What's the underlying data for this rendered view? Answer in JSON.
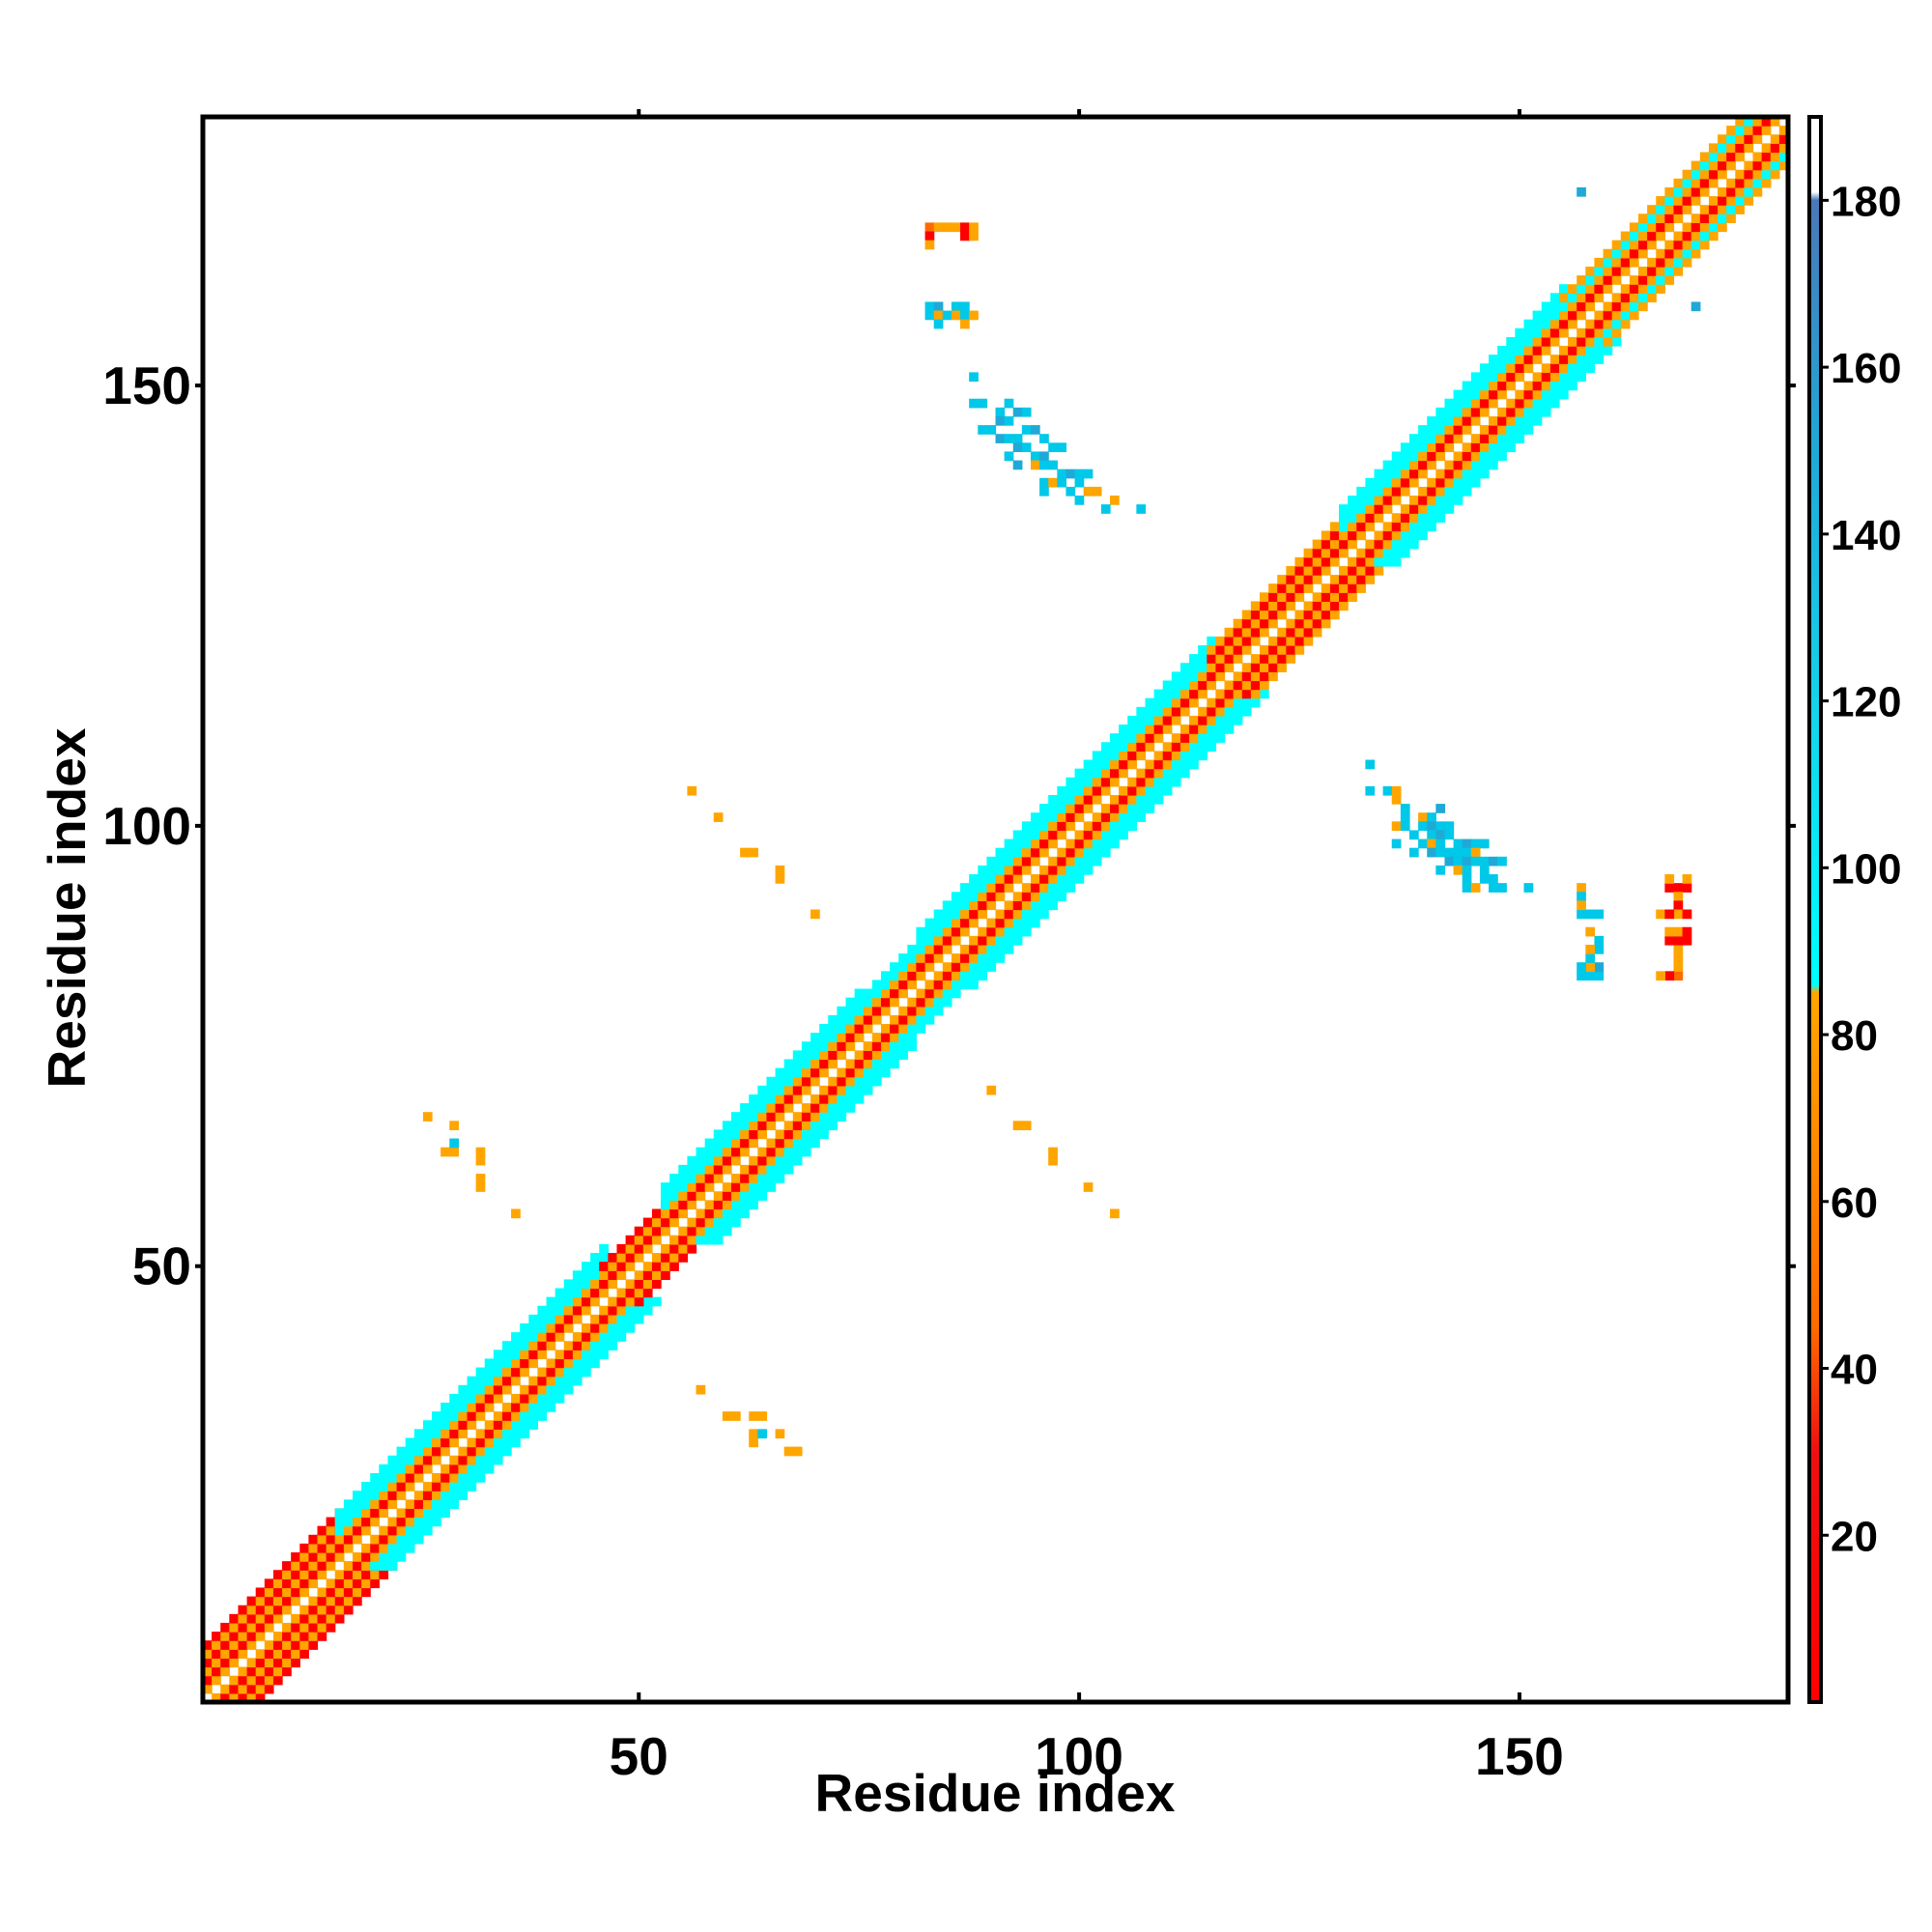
{
  "chart_data": {
    "type": "heatmap",
    "title": "",
    "xlabel": "Residue index",
    "ylabel": "Residue index",
    "xlim": [
      0.5,
      180.5
    ],
    "ylim": [
      0.5,
      180.5
    ],
    "x_ticks": [
      "50",
      "100",
      "150"
    ],
    "y_ticks": [
      "50",
      "100",
      "150"
    ],
    "colorbar": {
      "range": [
        0,
        190
      ],
      "ticks": [
        "20",
        "40",
        "60",
        "80",
        "100",
        "120",
        "140",
        "160",
        "180"
      ],
      "color_stops": [
        {
          "value": 0,
          "color": "#ff0000"
        },
        {
          "value": 30,
          "color": "#ee1010"
        },
        {
          "value": 45,
          "color": "#ff6a00"
        },
        {
          "value": 85,
          "color": "#ffa500"
        },
        {
          "value": 86,
          "color": "#00ffff"
        },
        {
          "value": 120,
          "color": "#16d2ea"
        },
        {
          "value": 150,
          "color": "#20a9d6"
        },
        {
          "value": 180,
          "color": "#4a78b8"
        },
        {
          "value": 181,
          "color": "#ffffff"
        },
        {
          "value": 190,
          "color": "#ffffff"
        }
      ]
    },
    "color_scale_note": "",
    "segments": [
      {
        "start": 1,
        "end": 16,
        "band": [
          1,
          2,
          3,
          4,
          5,
          6
        ],
        "colors": [
          "#ffa500",
          "#ff0000",
          "#ffa500",
          "#ff0000",
          "#ffa500",
          "#ff0000"
        ]
      },
      {
        "start": 16,
        "end": 46,
        "band": [
          1,
          2,
          3,
          4,
          5,
          6
        ],
        "colors": [
          "#ffa500",
          "#ff0000",
          "#ffa500",
          "#00ffff",
          "#00ffff",
          "#00ffff"
        ]
      },
      {
        "start": 46,
        "end": 53,
        "band": [
          1,
          2,
          3,
          4
        ],
        "colors": [
          "#ffa500",
          "#ff0000",
          "#ffa500",
          "#ff0000"
        ]
      },
      {
        "start": 53,
        "end": 75,
        "band": [
          1,
          2,
          3,
          4,
          5,
          6
        ],
        "colors": [
          "#ffa500",
          "#ff0000",
          "#ffa500",
          "#00ffff",
          "#00ffff",
          "#00ffff"
        ]
      },
      {
        "start": 75,
        "end": 82,
        "band": [
          1,
          2,
          3,
          4,
          5
        ],
        "colors": [
          "#ffa500",
          "#ff0000",
          "#ffa500",
          "#00ffff",
          "#00ffff"
        ]
      },
      {
        "start": 82,
        "end": 115,
        "band": [
          1,
          2,
          3,
          4,
          5,
          6
        ],
        "colors": [
          "#ffa500",
          "#ff0000",
          "#ffa500",
          "#00ffff",
          "#00ffff",
          "#00ffff"
        ]
      },
      {
        "start": 115,
        "end": 130,
        "band": [
          1,
          2,
          3,
          4,
          5
        ],
        "colors": [
          "#ffa500",
          "#ff0000",
          "#ffa500",
          "#ff0000",
          "#ffa500"
        ]
      },
      {
        "start": 130,
        "end": 155,
        "band": [
          1,
          2,
          3,
          4,
          5,
          6
        ],
        "colors": [
          "#ffa500",
          "#ff0000",
          "#ffa500",
          "#00ffff",
          "#00ffff",
          "#00ffff"
        ]
      },
      {
        "start": 155,
        "end": 180,
        "band": [
          1,
          2,
          3,
          4,
          5
        ],
        "colors": [
          "#ffa500",
          "#ff0000",
          "#ffa500",
          "#00ffff",
          "#ffa500"
        ]
      }
    ],
    "off_diagonal_contacts": [
      {
        "i": 26,
        "j": 67,
        "color": "#ffa500"
      },
      {
        "i": 29,
        "j": 66,
        "color": "#ffa500"
      },
      {
        "i": 28,
        "j": 63,
        "color": "#ffa500"
      },
      {
        "i": 29,
        "j": 63,
        "color": "#ffa500"
      },
      {
        "i": 29,
        "j": 64,
        "color": "#00c8e8"
      },
      {
        "i": 32,
        "j": 63,
        "color": "#ffa500"
      },
      {
        "i": 32,
        "j": 62,
        "color": "#ffa500"
      },
      {
        "i": 32,
        "j": 60,
        "color": "#ffa500"
      },
      {
        "i": 32,
        "j": 59,
        "color": "#ffa500"
      },
      {
        "i": 36,
        "j": 56,
        "color": "#ffa500"
      },
      {
        "i": 57,
        "j": 36,
        "color": "#ffa500"
      },
      {
        "i": 60,
        "j": 33,
        "color": "#ffa500"
      },
      {
        "i": 61,
        "j": 33,
        "color": "#ffa500"
      },
      {
        "i": 63,
        "j": 33,
        "color": "#ffa500"
      },
      {
        "i": 64,
        "j": 33,
        "color": "#ffa500"
      },
      {
        "i": 63,
        "j": 31,
        "color": "#ffa500"
      },
      {
        "i": 63,
        "j": 30,
        "color": "#ffa500"
      },
      {
        "i": 64,
        "j": 31,
        "color": "#00c8e8"
      },
      {
        "i": 66,
        "j": 31,
        "color": "#ffa500"
      },
      {
        "i": 67,
        "j": 29,
        "color": "#ffa500"
      },
      {
        "i": 68,
        "j": 29,
        "color": "#ffa500"
      },
      {
        "i": 56,
        "j": 104,
        "color": "#ffa500"
      },
      {
        "i": 59,
        "j": 101,
        "color": "#ffa500"
      },
      {
        "i": 62,
        "j": 97,
        "color": "#ffa500"
      },
      {
        "i": 63,
        "j": 97,
        "color": "#ffa500"
      },
      {
        "i": 66,
        "j": 95,
        "color": "#ffa500"
      },
      {
        "i": 66,
        "j": 94,
        "color": "#ffa500"
      },
      {
        "i": 70,
        "j": 90,
        "color": "#ffa500"
      },
      {
        "i": 90,
        "j": 70,
        "color": "#ffa500"
      },
      {
        "i": 93,
        "j": 66,
        "color": "#ffa500"
      },
      {
        "i": 94,
        "j": 66,
        "color": "#ffa500"
      },
      {
        "i": 97,
        "j": 63,
        "color": "#ffa500"
      },
      {
        "i": 97,
        "j": 62,
        "color": "#ffa500"
      },
      {
        "i": 101,
        "j": 59,
        "color": "#ffa500"
      },
      {
        "i": 104,
        "j": 56,
        "color": "#ffa500"
      },
      {
        "i": 83,
        "j": 168,
        "color": "#ff6a00"
      },
      {
        "i": 84,
        "j": 168,
        "color": "#ffa500"
      },
      {
        "i": 85,
        "j": 168,
        "color": "#ffa500"
      },
      {
        "i": 86,
        "j": 168,
        "color": "#ffa500"
      },
      {
        "i": 87,
        "j": 168,
        "color": "#ff0000"
      },
      {
        "i": 88,
        "j": 168,
        "color": "#ffa500"
      },
      {
        "i": 83,
        "j": 167,
        "color": "#ff0000"
      },
      {
        "i": 87,
        "j": 167,
        "color": "#ff0000"
      },
      {
        "i": 83,
        "j": 166,
        "color": "#ffa500"
      },
      {
        "i": 88,
        "j": 167,
        "color": "#ffa500"
      },
      {
        "i": 83,
        "j": 159,
        "color": "#00c8e8"
      },
      {
        "i": 84,
        "j": 159,
        "color": "#20a9d6"
      },
      {
        "i": 86,
        "j": 159,
        "color": "#00c8e8"
      },
      {
        "i": 87,
        "j": 159,
        "color": "#00c8e8"
      },
      {
        "i": 83,
        "j": 158,
        "color": "#00c8e8"
      },
      {
        "i": 84,
        "j": 158,
        "color": "#ffa500"
      },
      {
        "i": 85,
        "j": 158,
        "color": "#00c8e8"
      },
      {
        "i": 86,
        "j": 158,
        "color": "#ffa500"
      },
      {
        "i": 87,
        "j": 158,
        "color": "#00c8e8"
      },
      {
        "i": 88,
        "j": 158,
        "color": "#ffa500"
      },
      {
        "i": 84,
        "j": 157,
        "color": "#00c8e8"
      },
      {
        "i": 87,
        "j": 157,
        "color": "#ffa500"
      },
      {
        "i": 88,
        "j": 151,
        "color": "#00c8e8"
      },
      {
        "i": 88,
        "j": 148,
        "color": "#00c8e8"
      },
      {
        "i": 89,
        "j": 148,
        "color": "#00c8e8"
      },
      {
        "i": 91,
        "j": 147,
        "color": "#00c8e8"
      },
      {
        "i": 92,
        "j": 148,
        "color": "#00c8e8"
      },
      {
        "i": 89,
        "j": 145,
        "color": "#00c8e8"
      },
      {
        "i": 90,
        "j": 145,
        "color": "#00c8e8"
      },
      {
        "i": 91,
        "j": 146,
        "color": "#20a9d6"
      },
      {
        "i": 92,
        "j": 146,
        "color": "#00c8e8"
      },
      {
        "i": 93,
        "j": 147,
        "color": "#20a9d6"
      },
      {
        "i": 94,
        "j": 147,
        "color": "#00c8e8"
      },
      {
        "i": 91,
        "j": 144,
        "color": "#20a9d6"
      },
      {
        "i": 92,
        "j": 144,
        "color": "#00c8e8"
      },
      {
        "i": 93,
        "j": 144,
        "color": "#00c8e8"
      },
      {
        "i": 94,
        "j": 145,
        "color": "#00c8e8"
      },
      {
        "i": 95,
        "j": 145,
        "color": "#20a9d6"
      },
      {
        "i": 96,
        "j": 144,
        "color": "#00c8e8"
      },
      {
        "i": 92,
        "j": 142,
        "color": "#00c8e8"
      },
      {
        "i": 93,
        "j": 143,
        "color": "#20a9d6"
      },
      {
        "i": 94,
        "j": 143,
        "color": "#00c8e8"
      },
      {
        "i": 95,
        "j": 142,
        "color": "#00c8e8"
      },
      {
        "i": 96,
        "j": 142,
        "color": "#20a9d6"
      },
      {
        "i": 97,
        "j": 143,
        "color": "#00c8e8"
      },
      {
        "i": 98,
        "j": 143,
        "color": "#00c8e8"
      },
      {
        "i": 93,
        "j": 141,
        "color": "#20a9d6"
      },
      {
        "i": 95,
        "j": 141,
        "color": "#ffa500"
      },
      {
        "i": 96,
        "j": 141,
        "color": "#00c8e8"
      },
      {
        "i": 97,
        "j": 141,
        "color": "#00c8e8"
      },
      {
        "i": 98,
        "j": 140,
        "color": "#00c8e8"
      },
      {
        "i": 99,
        "j": 140,
        "color": "#20a9d6"
      },
      {
        "i": 100,
        "j": 140,
        "color": "#00c8e8"
      },
      {
        "i": 101,
        "j": 140,
        "color": "#00c8e8"
      },
      {
        "i": 96,
        "j": 139,
        "color": "#00c8e8"
      },
      {
        "i": 97,
        "j": 139,
        "color": "#ffa500"
      },
      {
        "i": 98,
        "j": 139,
        "color": "#00c8e8"
      },
      {
        "i": 100,
        "j": 139,
        "color": "#00c8e8"
      },
      {
        "i": 96,
        "j": 138,
        "color": "#00c8e8"
      },
      {
        "i": 99,
        "j": 138,
        "color": "#00c8e8"
      },
      {
        "i": 101,
        "j": 138,
        "color": "#ffa500"
      },
      {
        "i": 102,
        "j": 138,
        "color": "#ffa500"
      },
      {
        "i": 100,
        "j": 137,
        "color": "#00c8e8"
      },
      {
        "i": 104,
        "j": 137,
        "color": "#ffa500"
      },
      {
        "i": 103,
        "j": 136,
        "color": "#00c8e8"
      },
      {
        "i": 107,
        "j": 136,
        "color": "#00c8e8"
      },
      {
        "i": 168,
        "j": 83,
        "color": "#ff6a00"
      },
      {
        "i": 168,
        "j": 84,
        "color": "#ffa500"
      },
      {
        "i": 168,
        "j": 85,
        "color": "#ffa500"
      },
      {
        "i": 168,
        "j": 86,
        "color": "#ffa500"
      },
      {
        "i": 168,
        "j": 87,
        "color": "#ff0000"
      },
      {
        "i": 168,
        "j": 88,
        "color": "#ffa500"
      },
      {
        "i": 167,
        "j": 83,
        "color": "#ff0000"
      },
      {
        "i": 167,
        "j": 87,
        "color": "#ff0000"
      },
      {
        "i": 166,
        "j": 83,
        "color": "#ffa500"
      },
      {
        "i": 169,
        "j": 88,
        "color": "#ff0000"
      },
      {
        "i": 169,
        "j": 87,
        "color": "#ff0000"
      },
      {
        "i": 167,
        "j": 88,
        "color": "#ffa500"
      },
      {
        "i": 159,
        "j": 83,
        "color": "#00c8e8"
      },
      {
        "i": 159,
        "j": 84,
        "color": "#20a9d6"
      },
      {
        "i": 159,
        "j": 86,
        "color": "#00c8e8"
      },
      {
        "i": 159,
        "j": 87,
        "color": "#00c8e8"
      },
      {
        "i": 158,
        "j": 83,
        "color": "#00c8e8"
      },
      {
        "i": 158,
        "j": 84,
        "color": "#ffa500"
      },
      {
        "i": 158,
        "j": 85,
        "color": "#00c8e8"
      },
      {
        "i": 158,
        "j": 86,
        "color": "#ffa500"
      },
      {
        "i": 157,
        "j": 83,
        "color": "#00c8e8"
      },
      {
        "i": 157,
        "j": 84,
        "color": "#00c8e8"
      },
      {
        "i": 158,
        "j": 88,
        "color": "#ffa500"
      },
      {
        "i": 133,
        "j": 107,
        "color": "#00c8e8"
      },
      {
        "i": 133,
        "j": 104,
        "color": "#00c8e8"
      },
      {
        "i": 135,
        "j": 104,
        "color": "#00c8e8"
      },
      {
        "i": 136,
        "j": 104,
        "color": "#ffa500"
      },
      {
        "i": 136,
        "j": 103,
        "color": "#ffa500"
      },
      {
        "i": 137,
        "j": 102,
        "color": "#00c8e8"
      },
      {
        "i": 137,
        "j": 101,
        "color": "#00c8e8"
      },
      {
        "i": 139,
        "j": 101,
        "color": "#ffa500"
      },
      {
        "i": 140,
        "j": 101,
        "color": "#00c8e8"
      },
      {
        "i": 141,
        "j": 102,
        "color": "#20a9d6"
      },
      {
        "i": 136,
        "j": 100,
        "color": "#ffa500"
      },
      {
        "i": 137,
        "j": 100,
        "color": "#00c8e8"
      },
      {
        "i": 139,
        "j": 100,
        "color": "#00c8e8"
      },
      {
        "i": 140,
        "j": 100,
        "color": "#20a9d6"
      },
      {
        "i": 141,
        "j": 100,
        "color": "#00c8e8"
      },
      {
        "i": 142,
        "j": 100,
        "color": "#00c8e8"
      },
      {
        "i": 138,
        "j": 99,
        "color": "#00c8e8"
      },
      {
        "i": 140,
        "j": 99,
        "color": "#00c8e8"
      },
      {
        "i": 141,
        "j": 99,
        "color": "#20a9d6"
      },
      {
        "i": 142,
        "j": 99,
        "color": "#00c8e8"
      },
      {
        "i": 136,
        "j": 98,
        "color": "#00c8e8"
      },
      {
        "i": 139,
        "j": 98,
        "color": "#00c8e8"
      },
      {
        "i": 140,
        "j": 98,
        "color": "#ffa500"
      },
      {
        "i": 141,
        "j": 98,
        "color": "#00c8e8"
      },
      {
        "i": 143,
        "j": 98,
        "color": "#00c8e8"
      },
      {
        "i": 144,
        "j": 98,
        "color": "#20a9d6"
      },
      {
        "i": 145,
        "j": 98,
        "color": "#00c8e8"
      },
      {
        "i": 146,
        "j": 98,
        "color": "#00c8e8"
      },
      {
        "i": 138,
        "j": 97,
        "color": "#00c8e8"
      },
      {
        "i": 140,
        "j": 97,
        "color": "#20a9d6"
      },
      {
        "i": 141,
        "j": 97,
        "color": "#00c8e8"
      },
      {
        "i": 142,
        "j": 97,
        "color": "#00c8e8"
      },
      {
        "i": 143,
        "j": 97,
        "color": "#00c8e8"
      },
      {
        "i": 144,
        "j": 97,
        "color": "#00c8e8"
      },
      {
        "i": 145,
        "j": 97,
        "color": "#ffa500"
      },
      {
        "i": 142,
        "j": 96,
        "color": "#20a9d6"
      },
      {
        "i": 143,
        "j": 96,
        "color": "#00c8e8"
      },
      {
        "i": 144,
        "j": 96,
        "color": "#20a9d6"
      },
      {
        "i": 145,
        "j": 96,
        "color": "#00c8e8"
      },
      {
        "i": 146,
        "j": 96,
        "color": "#00c8e8"
      },
      {
        "i": 147,
        "j": 96,
        "color": "#20a9d6"
      },
      {
        "i": 148,
        "j": 96,
        "color": "#00c8e8"
      },
      {
        "i": 141,
        "j": 95,
        "color": "#00c8e8"
      },
      {
        "i": 143,
        "j": 95,
        "color": "#ffa500"
      },
      {
        "i": 144,
        "j": 95,
        "color": "#00c8e8"
      },
      {
        "i": 146,
        "j": 95,
        "color": "#00c8e8"
      },
      {
        "i": 144,
        "j": 94,
        "color": "#00c8e8"
      },
      {
        "i": 146,
        "j": 94,
        "color": "#00c8e8"
      },
      {
        "i": 147,
        "j": 94,
        "color": "#00c8e8"
      },
      {
        "i": 144,
        "j": 93,
        "color": "#00c8e8"
      },
      {
        "i": 145,
        "j": 93,
        "color": "#ffa500"
      },
      {
        "i": 147,
        "j": 93,
        "color": "#00c8e8"
      },
      {
        "i": 148,
        "j": 93,
        "color": "#00c8e8"
      },
      {
        "i": 151,
        "j": 93,
        "color": "#00c8e8"
      },
      {
        "i": 157,
        "j": 93,
        "color": "#ffa500"
      },
      {
        "i": 157,
        "j": 92,
        "color": "#00c8e8"
      },
      {
        "i": 157,
        "j": 90,
        "color": "#00c8e8"
      },
      {
        "i": 158,
        "j": 90,
        "color": "#00c8e8"
      },
      {
        "i": 159,
        "j": 90,
        "color": "#00c8e8"
      },
      {
        "i": 157,
        "j": 91,
        "color": "#ffa500"
      },
      {
        "i": 167,
        "j": 93,
        "color": "#ff0000"
      },
      {
        "i": 168,
        "j": 93,
        "color": "#ff0000"
      },
      {
        "i": 169,
        "j": 93,
        "color": "#ff0000"
      },
      {
        "i": 168,
        "j": 92,
        "color": "#ffa500"
      },
      {
        "i": 168,
        "j": 91,
        "color": "#ff0000"
      },
      {
        "i": 168,
        "j": 90,
        "color": "#ffa500"
      },
      {
        "i": 166,
        "j": 90,
        "color": "#ffa500"
      },
      {
        "i": 167,
        "j": 90,
        "color": "#ff0000"
      },
      {
        "i": 169,
        "j": 90,
        "color": "#ff0000"
      },
      {
        "i": 169,
        "j": 94,
        "color": "#ffa500"
      },
      {
        "i": 167,
        "j": 94,
        "color": "#ffa500"
      },
      {
        "i": 157,
        "j": 172,
        "color": "#20a9d6"
      },
      {
        "i": 170,
        "j": 159,
        "color": "#20a9d6"
      }
    ]
  }
}
